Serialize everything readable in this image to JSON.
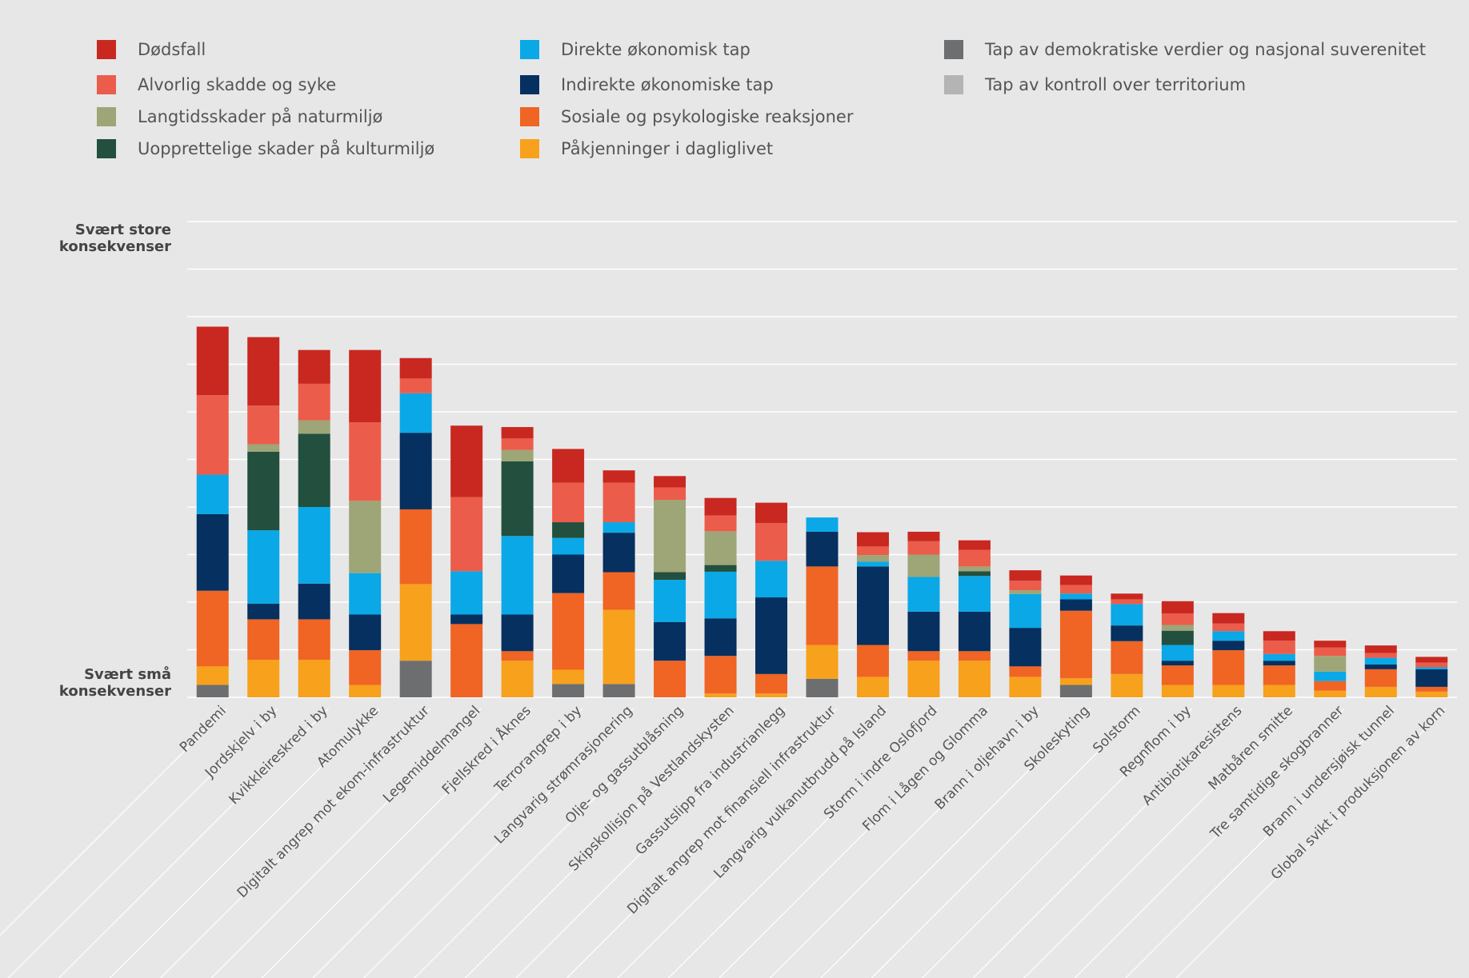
{
  "chart_data": {
    "type": "stacked_bar",
    "categories": [
      "Pandemi",
      "Jordskjelv i by",
      "Kvikkleireskred i by",
      "Atomulykke",
      "Digitalt angrep mot ekom-infrastruktur",
      "Legemiddelmangel",
      "Fjellskred i Åknes",
      "Terrorangrep i by",
      "Langvarig strømrasjonering",
      "Olje- og gassutblåsning",
      "Skipskollisjon på Vestlandskysten",
      "Gassutslipp fra industrianlegg",
      "Digitalt angrep mot finansiell infrastruktur",
      "Langvarig vulkanutbrudd på Island",
      "Storm i indre Oslofjord",
      "Flom i Lågen og Glomma",
      "Brann i oljehavn i by",
      "Skoleskyting",
      "Solstorm",
      "Regnflom i by",
      "Antibiotikaresistens",
      "Matbåren smitte",
      "Tre samtidige skogbranner",
      "Brann i undersjøisk tunnel",
      "Global svikt i produksjonen av korn"
    ],
    "series": [
      {
        "name": "Dødsfall",
        "color": "#c8281f",
        "values": [
          1.44,
          1.44,
          0.71,
          1.52,
          0.43,
          1.5,
          0.24,
          0.71,
          0.26,
          0.24,
          0.37,
          0.43,
          0,
          0.3,
          0.2,
          0.2,
          0.22,
          0.2,
          0.12,
          0.26,
          0.22,
          0.2,
          0.14,
          0.16,
          0.12
        ]
      },
      {
        "name": "Alvorlig skadde og syke",
        "color": "#ec5c4a",
        "values": [
          1.67,
          0.81,
          0.77,
          1.65,
          0.31,
          1.56,
          0.24,
          0.83,
          0.83,
          0.26,
          0.33,
          0.79,
          0,
          0.18,
          0.28,
          0.35,
          0.2,
          0.18,
          0.1,
          0.24,
          0.16,
          0.28,
          0.18,
          0.1,
          0.1
        ]
      },
      {
        "name": "Langtidsskader på naturmiljø",
        "color": "#9ea577",
        "values": [
          0,
          0.16,
          0.28,
          1.52,
          0,
          0,
          0.24,
          0,
          0,
          1.52,
          0.71,
          0,
          0,
          0.14,
          0.47,
          0.1,
          0.08,
          0,
          0,
          0.12,
          0,
          0,
          0.33,
          0,
          0
        ]
      },
      {
        "name": "Uopprettelige skader på kulturmiljø",
        "color": "#234f3e",
        "values": [
          0,
          1.65,
          1.54,
          0,
          0,
          0,
          1.57,
          0.33,
          0,
          0.16,
          0.14,
          0,
          0,
          0,
          0,
          0.1,
          0,
          0,
          0,
          0.3,
          0,
          0,
          0,
          0,
          0
        ]
      },
      {
        "name": "Direkte økonomisk tap",
        "color": "#0aa8e6",
        "values": [
          0.83,
          1.54,
          1.61,
          0.87,
          0.83,
          0.91,
          1.65,
          0.35,
          0.22,
          0.89,
          0.98,
          0.77,
          0.3,
          0.1,
          0.73,
          0.75,
          0.71,
          0.12,
          0.45,
          0.33,
          0.2,
          0.14,
          0.2,
          0.14,
          0.04
        ]
      },
      {
        "name": "Indirekte økonomiske tap",
        "color": "#05305f",
        "values": [
          1.61,
          0.33,
          0.75,
          0.75,
          1.61,
          0.2,
          0.77,
          0.81,
          0.83,
          0.81,
          0.79,
          1.61,
          0.73,
          1.65,
          0.83,
          0.83,
          0.81,
          0.24,
          0.33,
          0.1,
          0.2,
          0.1,
          0,
          0.1,
          0.37
        ]
      },
      {
        "name": "Sosiale og psykologiske reaksjoner",
        "color": "#f06424",
        "values": [
          1.59,
          0.85,
          0.85,
          0.73,
          1.57,
          1.54,
          0.2,
          1.61,
          0.79,
          0.77,
          0.79,
          0.41,
          1.65,
          0.67,
          0.2,
          0.2,
          0.22,
          1.42,
          0.69,
          0.41,
          0.73,
          0.41,
          0.2,
          0.37,
          0.1
        ]
      },
      {
        "name": "Påkjenninger i dagliglivet",
        "color": "#f7a11c",
        "values": [
          0.39,
          0.79,
          0.79,
          0.26,
          1.61,
          0,
          0.77,
          0.3,
          1.56,
          0,
          0.08,
          0.08,
          0.71,
          0.43,
          0.77,
          0.77,
          0.43,
          0.14,
          0.49,
          0.26,
          0.26,
          0.26,
          0.14,
          0.22,
          0.12
        ]
      },
      {
        "name": "Tap av demokratiske verdier og nasjonal suverenitet",
        "color": "#6d6e70",
        "values": [
          0.26,
          0,
          0,
          0,
          0.77,
          0,
          0,
          0.28,
          0.28,
          0,
          0,
          0,
          0.39,
          0,
          0,
          0,
          0,
          0.26,
          0,
          0,
          0,
          0,
          0,
          0,
          0
        ]
      },
      {
        "name": "Tap av kontroll over territorium",
        "color": "#b4b4b4",
        "values": [
          0,
          0,
          0,
          0,
          0,
          0,
          0,
          0,
          0,
          0,
          0,
          0,
          0,
          0,
          0,
          0,
          0,
          0,
          0,
          0,
          0,
          0,
          0,
          0,
          0
        ]
      }
    ],
    "ylim": [
      0,
      10
    ],
    "yticks": [
      {
        "value": 0.3,
        "label": "Svært små konsekvenser"
      },
      {
        "value": 9.65,
        "label": "Svært store konsekvenser"
      }
    ],
    "grid_lines": [
      0,
      1,
      2,
      3,
      4,
      5,
      6,
      7,
      8,
      9,
      10
    ],
    "grid": true
  }
}
